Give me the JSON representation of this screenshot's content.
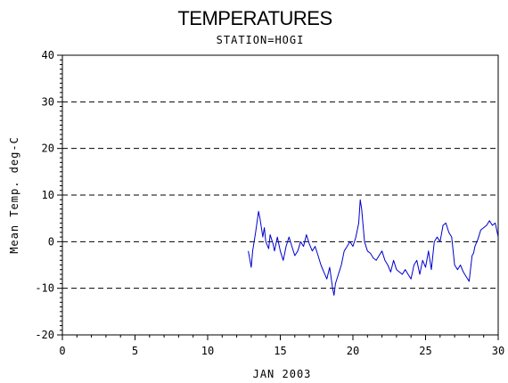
{
  "chart_data": {
    "type": "line",
    "title": "TEMPERATURES",
    "subtitle": "STATION=HOGI",
    "xlabel": "JAN 2003",
    "ylabel": "Mean Temp. deg-C",
    "xlim": [
      0,
      30
    ],
    "ylim": [
      -20,
      40
    ],
    "x_ticks": [
      "0",
      "5",
      "10",
      "15",
      "20",
      "25",
      "30"
    ],
    "y_ticks": [
      "-20",
      "-10",
      "0",
      "10",
      "20",
      "30",
      "40"
    ],
    "grid": "dashed horizontal at major y ticks",
    "line_color": "#0000cc",
    "series": [
      {
        "x": [
          12.8,
          13.0,
          13.1,
          13.3,
          13.5,
          13.6,
          13.8,
          13.9,
          14.0,
          14.2,
          14.3,
          14.5,
          14.6,
          14.8,
          15.0,
          15.2,
          15.4,
          15.6,
          15.8,
          16.0,
          16.2,
          16.4,
          16.6,
          16.8,
          17.0,
          17.2,
          17.4,
          17.6,
          17.8,
          18.0,
          18.2,
          18.4,
          18.6,
          18.7,
          18.8,
          19.0,
          19.2,
          19.4,
          19.6,
          19.8,
          20.0,
          20.2,
          20.4,
          20.5,
          20.6,
          20.8,
          21.0,
          21.2,
          21.4,
          21.6,
          21.8,
          22.0,
          22.2,
          22.4,
          22.6,
          22.8,
          23.0,
          23.2,
          23.4,
          23.6,
          23.8,
          24.0,
          24.2,
          24.4,
          24.6,
          24.8,
          25.0,
          25.2,
          25.4,
          25.6,
          25.8,
          26.0,
          26.2,
          26.4,
          26.6,
          26.8,
          27.0,
          27.2,
          27.4,
          27.6,
          27.8,
          28.0,
          28.2,
          28.3,
          28.4,
          28.6,
          28.8,
          29.0,
          29.2,
          29.4,
          29.6,
          29.8,
          30.0
        ],
        "y": [
          -2,
          -5.5,
          -2,
          2,
          6.5,
          5,
          1,
          3,
          0,
          -1.5,
          1.5,
          -0.5,
          -2,
          1,
          -2,
          -4,
          -1,
          1,
          -1,
          -3,
          -2,
          0,
          -1,
          1.5,
          -0.5,
          -2,
          -1,
          -3,
          -5,
          -6.5,
          -8,
          -5.5,
          -10,
          -11.5,
          -9,
          -7,
          -5,
          -2,
          -1,
          0,
          -1,
          1,
          4,
          9,
          7,
          0,
          -2,
          -2.5,
          -3.5,
          -4,
          -3,
          -2,
          -4,
          -5,
          -6.5,
          -4,
          -6,
          -6.5,
          -7,
          -6,
          -7,
          -8,
          -5,
          -4,
          -7,
          -4,
          -5.5,
          -2,
          -6,
          0,
          1,
          0,
          3.5,
          4,
          2,
          1,
          -5,
          -6,
          -5,
          -6.5,
          -7.5,
          -8.5,
          -3,
          -2.5,
          -1,
          0.5,
          2.5,
          3,
          3.5,
          4.5,
          3.5,
          4,
          1
        ]
      }
    ]
  }
}
